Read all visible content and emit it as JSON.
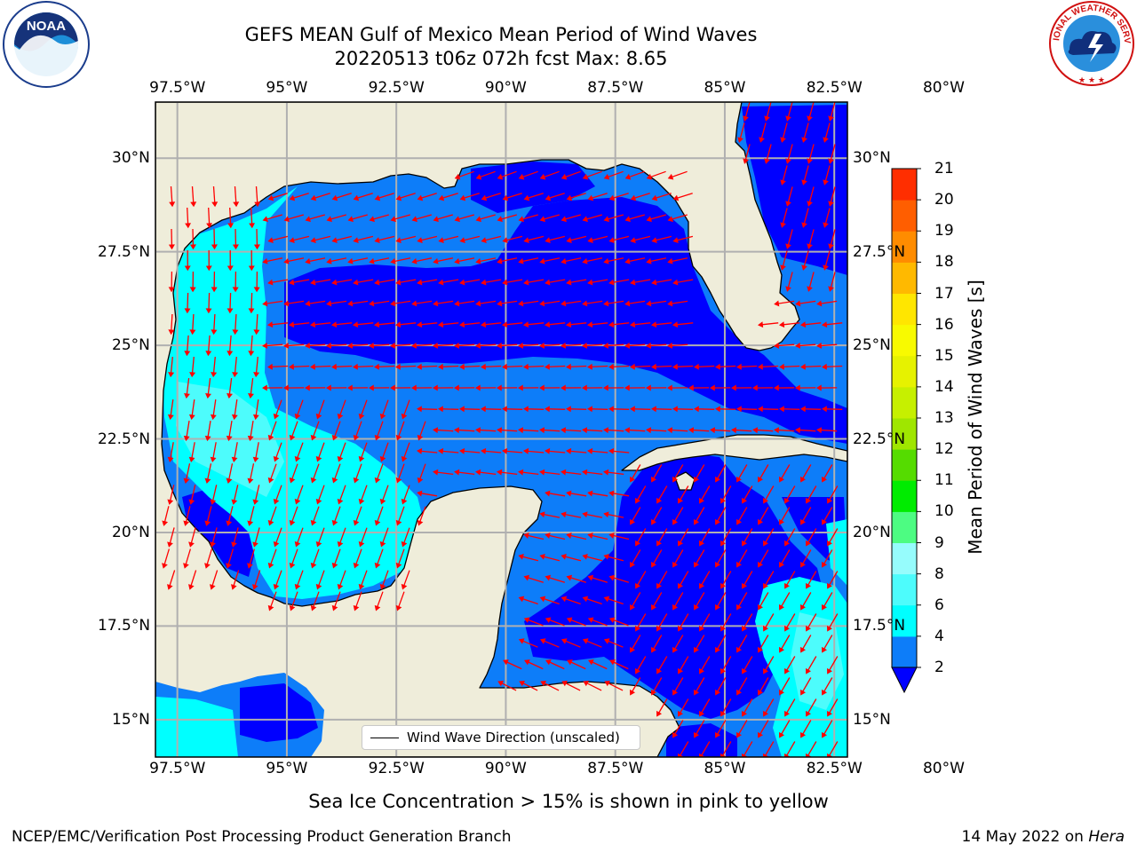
{
  "title": {
    "line1": "GEFS MEAN Gulf of Mexico Mean Period of Wind Waves",
    "line2": "20220513 t06z 072h fcst   Max: 8.65"
  },
  "map": {
    "projection": "plate-carree",
    "lon_range": [
      -98.0,
      -82.2
    ],
    "lat_range": [
      14.0,
      31.5
    ],
    "lon_ticks": [
      "97.5°W",
      "95°W",
      "92.5°W",
      "90°W",
      "87.5°W",
      "85°W",
      "82.5°W",
      "80°W"
    ],
    "lat_ticks": [
      "30°N",
      "27.5°N",
      "25°N",
      "22.5°N",
      "20°N",
      "17.5°N",
      "15°N"
    ],
    "land_color": "#efedda",
    "grid": true,
    "vector_color": "#ff0000"
  },
  "colorbar": {
    "label": "Mean Period of Wind Waves [s]",
    "ticks": [
      "2",
      "4",
      "6",
      "8",
      "9",
      "10",
      "11",
      "12",
      "13",
      "14",
      "15",
      "16",
      "17",
      "18",
      "19",
      "20",
      "21"
    ],
    "extend": "min",
    "colors": [
      "#0d7df9",
      "#00ffff",
      "#4dfcfc",
      "#96fcfc",
      "#4dfc82",
      "#00ec00",
      "#55dc00",
      "#9fe600",
      "#c6f000",
      "#e6f200",
      "#f8fa00",
      "#ffe600",
      "#ffb900",
      "#ff8c00",
      "#ff5e00",
      "#ff2e00",
      "#ff0000"
    ],
    "under_color": "#0000ff"
  },
  "legend": {
    "label": "Wind Wave Direction (unscaled)",
    "location": "lower-center"
  },
  "footer": {
    "note": "Sea Ice Concentration > 15% is shown in pink to yellow",
    "left": "NCEP/EMC/Verification Post Processing Product Generation Branch",
    "date": "14 May 2022 on ",
    "machine": "Hera"
  },
  "logos": {
    "left": {
      "icon": "noaa-logo-icon",
      "text": "NOAA"
    },
    "right": {
      "icon": "nws-logo-icon",
      "text": "NATIONAL WEATHER SERVICE"
    }
  }
}
